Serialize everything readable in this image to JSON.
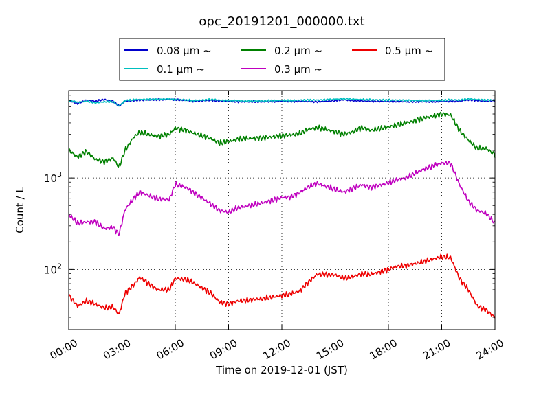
{
  "chart_data": {
    "type": "line",
    "title": "opc_20191201_000000.txt",
    "xlabel": "Time on 2019-12-01 (JST)",
    "ylabel": "Count / L",
    "yscale": "log",
    "xlim": [
      "2019-12-01 00:00",
      "2019-12-02 00:00"
    ],
    "ylim": [
      22,
      9000
    ],
    "x_ticks": [
      "00:00",
      "03:00",
      "06:00",
      "09:00",
      "12:00",
      "15:00",
      "18:00",
      "21:00",
      "24:00"
    ],
    "x_tick_hours": [
      0,
      3,
      6,
      9,
      12,
      15,
      18,
      21,
      24
    ],
    "y_ticks": [
      {
        "value": 100,
        "base": "10",
        "exp": "2"
      },
      {
        "value": 1000,
        "base": "10",
        "exp": "3"
      }
    ],
    "grid": true,
    "legend_position": "top-center",
    "x": [
      "00:00",
      "00:30",
      "01:00",
      "01:30",
      "02:00",
      "02:30",
      "02:50",
      "03:10",
      "03:40",
      "04:00",
      "05:00",
      "05:40",
      "06:00",
      "06:40",
      "07:00",
      "08:00",
      "08:30",
      "09:00",
      "09:30",
      "10:00",
      "11:00",
      "12:00",
      "12:30",
      "13:00",
      "13:30",
      "14:00",
      "15:00",
      "15:30",
      "16:00",
      "16:30",
      "17:00",
      "18:00",
      "18:30",
      "19:00",
      "20:00",
      "21:00",
      "21:30",
      "22:00",
      "22:30",
      "23:00",
      "23:30",
      "24:00"
    ],
    "series": [
      {
        "name": "0.08 μm ~",
        "color": "#0000cc",
        "values": [
          7000,
          6500,
          7100,
          6900,
          7200,
          6900,
          6100,
          6900,
          7000,
          7100,
          7150,
          7200,
          7150,
          7050,
          6900,
          7050,
          6950,
          6900,
          6800,
          6800,
          6800,
          6900,
          6850,
          6900,
          6850,
          6800,
          7000,
          7150,
          7000,
          6950,
          6900,
          6850,
          6850,
          6800,
          6800,
          6850,
          6900,
          6900,
          7150,
          7000,
          6900,
          7000
        ]
      },
      {
        "name": "0.1 μm ~",
        "color": "#00bfbf",
        "values": [
          7100,
          6700,
          6900,
          6600,
          6800,
          6800,
          6100,
          7000,
          7150,
          7200,
          7250,
          7300,
          7200,
          7100,
          7000,
          7200,
          7100,
          7000,
          7000,
          6900,
          6950,
          7050,
          7000,
          7100,
          7100,
          7100,
          7250,
          7350,
          7250,
          7200,
          7150,
          7100,
          7100,
          7050,
          7000,
          7050,
          7150,
          7100,
          7300,
          7200,
          7100,
          7100
        ]
      },
      {
        "name": "0.2 μm ~",
        "color": "#008000",
        "values": [
          2000,
          1700,
          1950,
          1600,
          1500,
          1650,
          1300,
          2000,
          2800,
          3150,
          2850,
          3000,
          3500,
          3300,
          3100,
          2700,
          2400,
          2500,
          2650,
          2700,
          2750,
          2900,
          2950,
          3050,
          3400,
          3550,
          3200,
          3000,
          3200,
          3550,
          3300,
          3600,
          3800,
          4000,
          4500,
          5000,
          4900,
          3300,
          2600,
          2100,
          2100,
          1800
        ]
      },
      {
        "name": "0.3 μm ~",
        "color": "#bf00bf",
        "values": [
          400,
          320,
          330,
          330,
          280,
          290,
          240,
          450,
          600,
          700,
          590,
          580,
          850,
          780,
          700,
          520,
          440,
          420,
          470,
          490,
          540,
          610,
          620,
          690,
          800,
          870,
          750,
          700,
          770,
          840,
          790,
          880,
          960,
          1000,
          1250,
          1450,
          1450,
          850,
          560,
          440,
          410,
          320
        ]
      },
      {
        "name": "0.5 μm ~",
        "color": "#ee0000",
        "values": [
          52,
          40,
          45,
          42,
          38,
          39,
          32,
          55,
          68,
          82,
          60,
          60,
          80,
          77,
          72,
          55,
          44,
          42,
          45,
          46,
          48,
          52,
          54,
          58,
          73,
          89,
          87,
          80,
          83,
          90,
          88,
          100,
          108,
          110,
          122,
          138,
          135,
          80,
          60,
          40,
          36,
          30
        ]
      }
    ]
  }
}
